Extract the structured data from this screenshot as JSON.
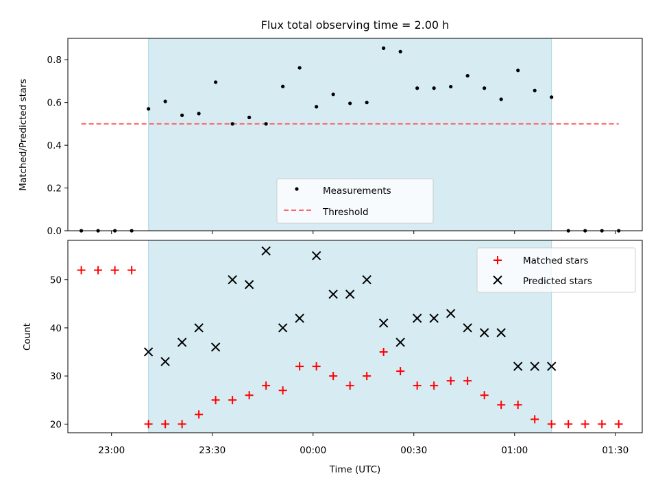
{
  "title": "Flux total observing time = 2.00 h",
  "colors": {
    "shade": "#add8e6",
    "measurements": "#000000",
    "threshold": "#ff6666",
    "matched": "#ff0000",
    "predicted": "#000000"
  },
  "chart_data": [
    {
      "type": "scatter",
      "ylabel": "Matched/Predicted stars",
      "xlabel": "",
      "xlim": [
        "22:47",
        "01:38"
      ],
      "ylim": [
        0,
        0.9
      ],
      "yticks": [
        "0.0",
        "0.2",
        "0.4",
        "0.6",
        "0.8"
      ],
      "shaded_span": [
        "23:11",
        "01:11"
      ],
      "threshold": {
        "value": 0.5,
        "x_range": [
          "22:51",
          "01:31"
        ]
      },
      "legend": {
        "position": "lower center",
        "entries": [
          "Measurements",
          "Threshold"
        ]
      },
      "series": [
        {
          "name": "Measurements",
          "x": [
            "22:51",
            "22:56",
            "23:01",
            "23:06",
            "23:11",
            "23:16",
            "23:21",
            "23:26",
            "23:31",
            "23:36",
            "23:41",
            "23:46",
            "23:51",
            "23:56",
            "00:01",
            "00:06",
            "00:11",
            "00:16",
            "00:21",
            "00:26",
            "00:31",
            "00:36",
            "00:41",
            "00:46",
            "00:51",
            "00:56",
            "01:01",
            "01:06",
            "01:11",
            "01:16",
            "01:21",
            "01:26",
            "01:31"
          ],
          "values": [
            0,
            0,
            0,
            0,
            0.57,
            0.605,
            0.54,
            0.548,
            0.695,
            0.5,
            0.53,
            0.5,
            0.675,
            0.762,
            0.58,
            0.638,
            0.596,
            0.6,
            0.854,
            0.838,
            0.667,
            0.667,
            0.674,
            0.725,
            0.667,
            0.615,
            0.75,
            0.656,
            0.625,
            0,
            0,
            0,
            0
          ]
        }
      ]
    },
    {
      "type": "scatter",
      "ylabel": "Count",
      "xlabel": "Time (UTC)",
      "xlim": [
        "22:47",
        "01:38"
      ],
      "ylim": [
        18.2,
        58.2
      ],
      "yticks": [
        "20",
        "30",
        "40",
        "50"
      ],
      "xticks": [
        "23:00",
        "23:30",
        "00:00",
        "00:30",
        "01:00",
        "01:30"
      ],
      "shaded_span": [
        "23:11",
        "01:11"
      ],
      "legend": {
        "position": "upper right",
        "entries": [
          "Matched stars",
          "Predicted stars"
        ]
      },
      "series": [
        {
          "name": "Matched stars",
          "x": [
            "22:51",
            "22:56",
            "23:01",
            "23:06",
            "23:11",
            "23:16",
            "23:21",
            "23:26",
            "23:31",
            "23:36",
            "23:41",
            "23:46",
            "23:51",
            "23:56",
            "00:01",
            "00:06",
            "00:11",
            "00:16",
            "00:21",
            "00:26",
            "00:31",
            "00:36",
            "00:41",
            "00:46",
            "00:51",
            "00:56",
            "01:01",
            "01:06",
            "01:11",
            "01:16",
            "01:21",
            "01:26",
            "01:31"
          ],
          "values": [
            52,
            52,
            52,
            52,
            20,
            20,
            20,
            22,
            25,
            25,
            26,
            28,
            27,
            32,
            32,
            30,
            28,
            30,
            35,
            31,
            28,
            28,
            29,
            29,
            26,
            24,
            24,
            21,
            20,
            20,
            20,
            20,
            20
          ]
        },
        {
          "name": "Predicted stars",
          "x": [
            "23:11",
            "23:16",
            "23:21",
            "23:26",
            "23:31",
            "23:36",
            "23:41",
            "23:46",
            "23:51",
            "23:56",
            "00:01",
            "00:06",
            "00:11",
            "00:16",
            "00:21",
            "00:26",
            "00:31",
            "00:36",
            "00:41",
            "00:46",
            "00:51",
            "00:56",
            "01:01",
            "01:06",
            "01:11"
          ],
          "values": [
            35,
            33,
            37,
            40,
            36,
            50,
            49,
            56,
            40,
            42,
            55,
            47,
            47,
            50,
            41,
            37,
            42,
            42,
            43,
            40,
            39,
            39,
            32,
            32,
            32
          ]
        }
      ]
    }
  ]
}
